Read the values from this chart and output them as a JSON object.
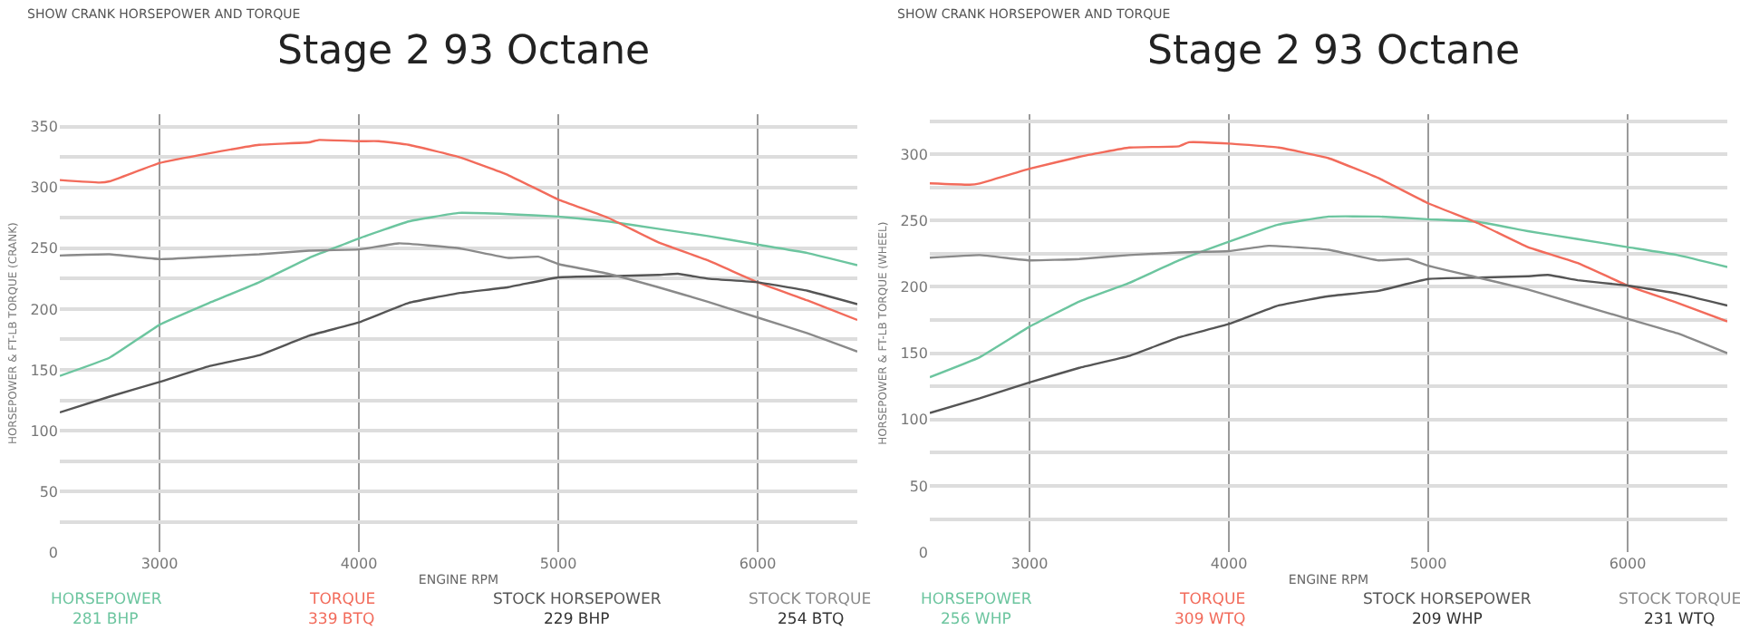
{
  "chart_data": [
    {
      "type": "line",
      "title": "Stage 2 93 Octane",
      "xlabel": "ENGINE RPM",
      "ylabel": "HORSEPOWER & FT-LB TORQUE (CRANK)",
      "legend": "bottom",
      "grid": true,
      "marker": "none",
      "line_style": "solid",
      "xlim": [
        2500,
        6500
      ],
      "xticks": [
        3000,
        4000,
        5000,
        6000
      ],
      "ylim": [
        0,
        360
      ],
      "yticks": [
        0,
        {
          "value": 25,
          "label": null
        },
        50,
        {
          "value": 75,
          "label": null
        },
        100,
        {
          "value": 125,
          "label": null
        },
        150,
        {
          "value": 175,
          "label": null
        },
        200,
        {
          "value": 225,
          "label": null
        },
        250,
        {
          "value": 275,
          "label": null
        },
        300,
        {
          "value": 325,
          "label": null
        },
        350
      ],
      "annotations": [
        "SHOW CRANK HORSEPOWER AND TORQUE",
        "281 BHP",
        "339 BTQ",
        "229 BHP",
        "254 BTQ"
      ],
      "series": [
        {
          "name": "HORSEPOWER",
          "color": "#6cc59f",
          "x": [
            2500,
            2750,
            3000,
            3250,
            3500,
            3750,
            4000,
            4250,
            4500,
            4750,
            5000,
            5250,
            5500,
            5750,
            6000,
            6250,
            6500
          ],
          "values": [
            145,
            160,
            187,
            205,
            222,
            242,
            258,
            272,
            279,
            278,
            276,
            272,
            266,
            260,
            253,
            246,
            236
          ]
        },
        {
          "name": "TORQUE",
          "color": "#f26b5b",
          "x": [
            2500,
            2700,
            2750,
            3000,
            3250,
            3500,
            3750,
            3800,
            4000,
            4100,
            4250,
            4500,
            4750,
            5000,
            5250,
            5500,
            5750,
            6000,
            6250,
            6500
          ],
          "values": [
            306,
            304,
            305,
            320,
            328,
            335,
            337,
            339,
            338,
            338,
            335,
            325,
            310,
            290,
            275,
            255,
            240,
            222,
            207,
            191
          ]
        },
        {
          "name": "STOCK HORSEPOWER",
          "color": "#555555",
          "x": [
            2500,
            2750,
            3000,
            3250,
            3500,
            3750,
            4000,
            4250,
            4500,
            4750,
            5000,
            5250,
            5500,
            5600,
            5750,
            6000,
            6250,
            6500
          ],
          "values": [
            115,
            128,
            140,
            153,
            162,
            178,
            189,
            205,
            213,
            218,
            226,
            227,
            228,
            229,
            225,
            222,
            215,
            204
          ]
        },
        {
          "name": "STOCK TORQUE",
          "color": "#8a8a8a",
          "x": [
            2500,
            2750,
            3000,
            3250,
            3500,
            3750,
            4000,
            4200,
            4500,
            4750,
            4900,
            5000,
            5250,
            5500,
            5750,
            6000,
            6250,
            6500
          ],
          "values": [
            244,
            245,
            241,
            243,
            245,
            248,
            249,
            254,
            250,
            242,
            243,
            237,
            229,
            218,
            206,
            193,
            180,
            165
          ]
        }
      ]
    },
    {
      "type": "line",
      "title": "Stage 2 93 Octane",
      "xlabel": "ENGINE RPM",
      "ylabel": "HORSEPOWER & FT-LB TORQUE (WHEEL)",
      "legend": "bottom",
      "grid": true,
      "marker": "none",
      "line_style": "solid",
      "xlim": [
        2500,
        6500
      ],
      "xticks": [
        3000,
        4000,
        5000,
        6000
      ],
      "ylim": [
        0,
        330
      ],
      "yticks": [
        0,
        {
          "value": 25,
          "label": null
        },
        50,
        {
          "value": 75,
          "label": null
        },
        100,
        {
          "value": 125,
          "label": null
        },
        150,
        {
          "value": 175,
          "label": null
        },
        200,
        {
          "value": 225,
          "label": null
        },
        250,
        {
          "value": 275,
          "label": null
        },
        300,
        {
          "value": 325,
          "label": null
        }
      ],
      "annotations": [
        "SHOW CRANK HORSEPOWER AND TORQUE",
        "256 WHP",
        "309 WTQ",
        "209 WHP",
        "231 WTQ"
      ],
      "series": [
        {
          "name": "HORSEPOWER",
          "color": "#6cc59f",
          "x": [
            2500,
            2750,
            3000,
            3250,
            3500,
            3750,
            4000,
            4250,
            4500,
            4750,
            5000,
            5250,
            5500,
            5750,
            6000,
            6250,
            6500
          ],
          "values": [
            132,
            147,
            170,
            189,
            203,
            220,
            234,
            247,
            253,
            253,
            251,
            249,
            242,
            236,
            230,
            224,
            215
          ]
        },
        {
          "name": "TORQUE",
          "color": "#f26b5b",
          "x": [
            2500,
            2700,
            2750,
            3000,
            3250,
            3500,
            3750,
            3800,
            4000,
            4250,
            4500,
            4750,
            5000,
            5250,
            5500,
            5750,
            6000,
            6250,
            6500
          ],
          "values": [
            278,
            277,
            278,
            289,
            298,
            305,
            306,
            309,
            308,
            305,
            297,
            282,
            263,
            248,
            230,
            218,
            201,
            188,
            174
          ]
        },
        {
          "name": "STOCK HORSEPOWER",
          "color": "#555555",
          "x": [
            2500,
            2750,
            3000,
            3250,
            3500,
            3750,
            4000,
            4250,
            4500,
            4750,
            5000,
            5250,
            5500,
            5600,
            5750,
            6000,
            6250,
            6500
          ],
          "values": [
            105,
            116,
            128,
            139,
            148,
            162,
            172,
            186,
            193,
            197,
            206,
            207,
            208,
            209,
            205,
            201,
            195,
            186
          ]
        },
        {
          "name": "STOCK TORQUE",
          "color": "#8a8a8a",
          "x": [
            2500,
            2750,
            3000,
            3250,
            3500,
            3750,
            4000,
            4200,
            4500,
            4750,
            4900,
            5000,
            5250,
            5500,
            5750,
            6000,
            6250,
            6500
          ],
          "values": [
            222,
            224,
            220,
            221,
            224,
            226,
            227,
            231,
            228,
            220,
            221,
            216,
            207,
            198,
            187,
            176,
            165,
            150
          ]
        }
      ]
    }
  ]
}
